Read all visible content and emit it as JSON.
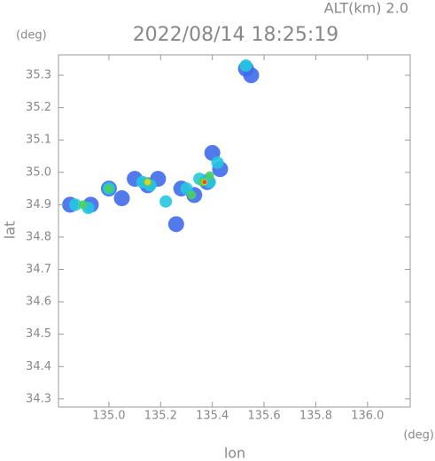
{
  "chart_data": {
    "type": "scatter",
    "title": "2022/08/14 18:25:19",
    "annotation": "ALT(km) 2.0",
    "y_unit": "(deg)",
    "x_unit": "(deg)",
    "ylabel": "lat",
    "xlabel": "lon",
    "xlim": [
      134.805,
      136.165
    ],
    "ylim": [
      34.275,
      35.363
    ],
    "xticks": [
      {
        "value": 135,
        "label": "135.0"
      },
      135.2,
      135.4,
      135.6,
      135.8,
      {
        "value": 136,
        "label": "136.0"
      }
    ],
    "yticks": [
      34.3,
      34.4,
      34.5,
      34.6,
      34.7,
      34.8,
      34.9,
      {
        "value": 35,
        "label": "35.0"
      },
      35.1,
      35.2,
      35.3
    ],
    "series": [
      {
        "color": "#3f6bea",
        "x": [
          135.53,
          134.85,
          134.93,
          135.0,
          135.05,
          135.1,
          135.15,
          135.19,
          135.28,
          135.33,
          135.38,
          135.4,
          135.43,
          135.26,
          135.55
        ],
        "y": [
          35.32,
          34.9,
          34.9,
          34.95,
          34.92,
          34.98,
          34.96,
          34.98,
          34.95,
          34.93,
          34.97,
          35.06,
          35.01,
          34.84,
          35.3
        ]
      },
      {
        "color": "#22c8e0",
        "x": [
          135.53,
          134.87,
          134.92,
          135.0,
          135.13,
          135.16,
          135.22,
          135.3,
          135.35,
          135.39,
          135.42
        ],
        "y": [
          35.33,
          34.9,
          34.89,
          34.95,
          34.97,
          34.96,
          34.91,
          34.95,
          34.98,
          34.97,
          35.03
        ]
      },
      {
        "color": "#4ad060",
        "x": [
          134.9,
          135.0,
          135.15,
          135.36,
          135.32,
          135.39
        ],
        "y": [
          34.9,
          34.95,
          34.97,
          34.97,
          34.93,
          34.99
        ]
      },
      {
        "color": "#f0d020",
        "x": [
          135.37,
          135.15
        ],
        "y": [
          34.97,
          34.97
        ]
      },
      {
        "color": "#e84020",
        "x": [
          135.37
        ],
        "y": [
          34.97
        ]
      }
    ]
  }
}
